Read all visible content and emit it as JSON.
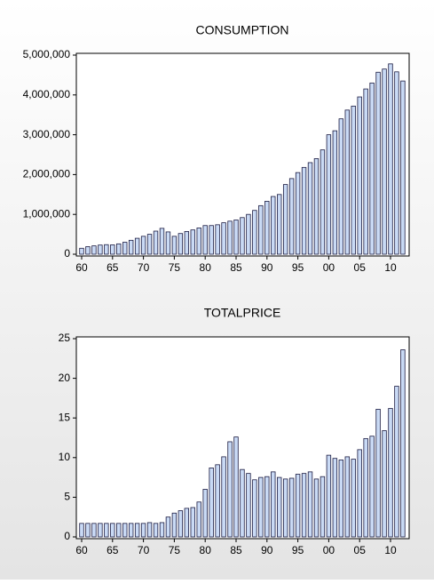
{
  "chart_data": [
    {
      "type": "bar",
      "title": "CONSUMPTION",
      "categories": [
        "60",
        null,
        null,
        null,
        null,
        "65",
        null,
        null,
        null,
        null,
        "70",
        null,
        null,
        null,
        null,
        "75",
        null,
        null,
        null,
        null,
        "80",
        null,
        null,
        null,
        null,
        "85",
        null,
        null,
        null,
        null,
        "90",
        null,
        null,
        null,
        null,
        "95",
        null,
        null,
        null,
        null,
        "00",
        null,
        null,
        null,
        null,
        "05",
        null,
        null,
        null,
        null,
        "10",
        null,
        null
      ],
      "values": [
        150000,
        190000,
        210000,
        230000,
        240000,
        235000,
        260000,
        300000,
        350000,
        400000,
        450000,
        500000,
        580000,
        650000,
        560000,
        450000,
        520000,
        570000,
        610000,
        660000,
        720000,
        720000,
        740000,
        790000,
        830000,
        860000,
        920000,
        1000000,
        1100000,
        1220000,
        1330000,
        1450000,
        1500000,
        1750000,
        1900000,
        2050000,
        2180000,
        2300000,
        2400000,
        2620000,
        3000000,
        3100000,
        3400000,
        3620000,
        3720000,
        3950000,
        4150000,
        4300000,
        4570000,
        4650000,
        4780000,
        4580000,
        4350000
      ],
      "color": "#c9daf5",
      "ylim": [
        0,
        5000000
      ],
      "yticks": [
        0,
        {
          "value": 1000000,
          "label": "1,000,000"
        },
        {
          "value": 2000000,
          "label": "2,000,000"
        },
        {
          "value": 3000000,
          "label": "3,000,000"
        },
        {
          "value": 4000000,
          "label": "4,000,000"
        },
        {
          "value": 5000000,
          "label": "5,000,000"
        }
      ]
    },
    {
      "type": "bar",
      "title": "TOTALPRICE",
      "categories": [
        "60",
        null,
        null,
        null,
        null,
        "65",
        null,
        null,
        null,
        null,
        "70",
        null,
        null,
        null,
        null,
        "75",
        null,
        null,
        null,
        null,
        "80",
        null,
        null,
        null,
        null,
        "85",
        null,
        null,
        null,
        null,
        "90",
        null,
        null,
        null,
        null,
        "95",
        null,
        null,
        null,
        null,
        "00",
        null,
        null,
        null,
        null,
        "05",
        null,
        null,
        null,
        null,
        "10",
        null,
        null
      ],
      "values": [
        1.7,
        1.7,
        1.7,
        1.7,
        1.7,
        1.7,
        1.7,
        1.7,
        1.7,
        1.7,
        1.7,
        1.8,
        1.7,
        1.8,
        2.5,
        3.0,
        3.3,
        3.6,
        3.7,
        4.4,
        6.0,
        8.7,
        9.1,
        10.1,
        12.0,
        12.6,
        8.5,
        8.0,
        7.2,
        7.5,
        7.6,
        8.2,
        7.5,
        7.3,
        7.4,
        7.9,
        8.0,
        8.2,
        7.3,
        7.6,
        10.3,
        9.9,
        9.7,
        10.1,
        9.8,
        11.0,
        12.4,
        12.7,
        16.1,
        13.4,
        16.2,
        19.0,
        23.6
      ],
      "color": "#c9daf5",
      "ylim": [
        0,
        25
      ],
      "yticks": [
        0,
        5,
        10,
        15,
        20,
        25
      ]
    }
  ]
}
